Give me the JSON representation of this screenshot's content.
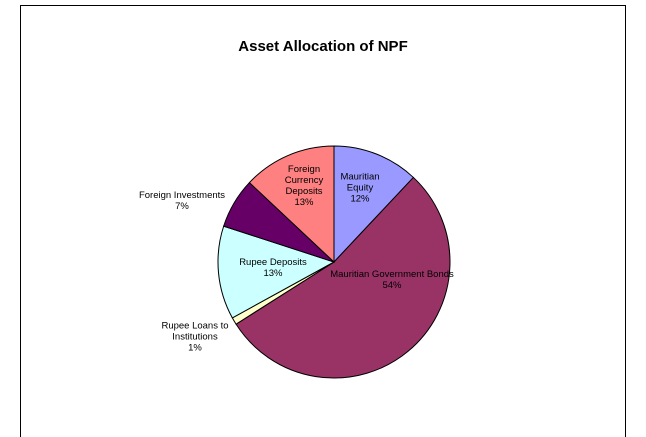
{
  "chart_data": {
    "type": "pie",
    "title": "Asset Allocation of NPF",
    "categories": [
      "Mauritian Equity",
      "Mauritian Government Bonds",
      "Rupee Loans to Institutions",
      "Rupee Deposits",
      "Foreign Investments",
      "Foreign Currency Deposits"
    ],
    "values": [
      12,
      54,
      1,
      13,
      7,
      13
    ],
    "value_labels": [
      "12%",
      "54%",
      "1%",
      "13%",
      "7%",
      "13%"
    ],
    "colors": [
      "#9999ff",
      "#993366",
      "#ffffcc",
      "#ccffff",
      "#660066",
      "#ff8080"
    ]
  }
}
